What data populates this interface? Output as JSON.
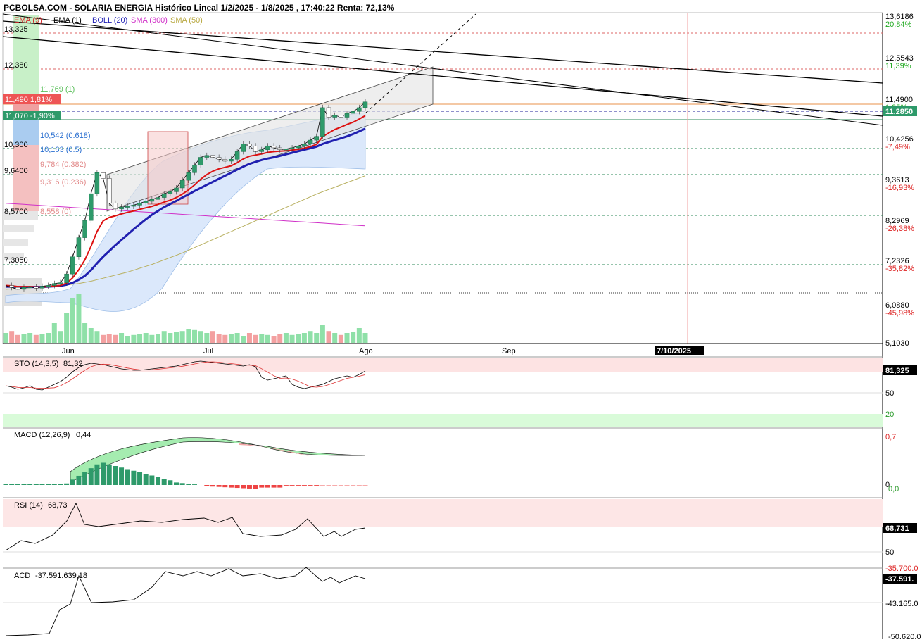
{
  "header": {
    "title": "PCBOLSA.COM - SOLARIA ENERGIA Histórico Lineal 1/2/2025 - 1/8/2025 , 17:40:22 Renta: 72,13%"
  },
  "legend": [
    {
      "label": "EMA (9)",
      "color": "#d62728"
    },
    {
      "label": "EMA (1)",
      "color": "#000000"
    },
    {
      "label": "BOLL (20)",
      "color": "#1f1fb4"
    },
    {
      "label": "SMA (300)",
      "color": "#d030c8"
    },
    {
      "label": "SMA (50)",
      "color": "#b8a840"
    }
  ],
  "colors": {
    "up": "#2e9a6a",
    "down": "#d44",
    "ema9": "#dd1111",
    "boll": "#2020b0",
    "sma300": "#d030c8",
    "sma50": "#b8b060",
    "band_fill": "#dbe8fb"
  },
  "left_labels": {
    "p13325": "13,325",
    "p12380": "12,380",
    "p10300": "10,300",
    "p9640": "9,6400",
    "p8570": "8,5700",
    "p7305": "7,3050",
    "fib_top": "11,769 (1)",
    "fib_618": "10,542 (0.618)",
    "fib_05": "10,163 (0.5)",
    "fib_382": "9,784 (0.382)",
    "fib_236": "9,316 (0.236)",
    "fib_0": "8,558 (0)",
    "badge_red": "11,490  1,81%",
    "badge_green": "11,070  -1,90%"
  },
  "right_axis": {
    "ticks": [
      {
        "price": "13,6186",
        "pct": "20,84%",
        "pct_color": "#22aa22"
      },
      {
        "price": "12,5543",
        "pct": "11,39%",
        "pct_color": "#22aa22"
      },
      {
        "price": "11,4900",
        "pct": "1,95%",
        "pct_color": "#22aa22"
      },
      {
        "price": "10,4256",
        "pct": "-7,49%",
        "pct_color": "#dd2222"
      },
      {
        "price": "9,3613",
        "pct": "-16,93%",
        "pct_color": "#dd2222"
      },
      {
        "price": "8,2969",
        "pct": "-26,38%",
        "pct_color": "#dd2222"
      },
      {
        "price": "7,2326",
        "pct": "-35,82%",
        "pct_color": "#dd2222"
      },
      {
        "price": "6,0880",
        "pct": "-45,98%",
        "pct_color": "#dd2222"
      },
      {
        "price": "5,1030",
        "pct": "",
        "pct_color": "#dd2222"
      }
    ],
    "last_price": "11,2850"
  },
  "x_axis": {
    "months": [
      "Jun",
      "Jul",
      "Ago",
      "Sep"
    ],
    "cursor_date": "7/10/2025"
  },
  "panels": {
    "sto": {
      "label": "STO (14,3,5)",
      "value": "81,32",
      "last": "81,325",
      "ticks": [
        "50",
        "20"
      ]
    },
    "macd": {
      "label": "MACD (12,26,9)",
      "value": "0,44",
      "ticks": [
        "0,7",
        "0",
        "0,0"
      ]
    },
    "rsi": {
      "label": "RSI (14)",
      "value": "68,73",
      "last": "68,731",
      "ticks": [
        "50"
      ]
    },
    "acd": {
      "label": "ACD",
      "value": "-37.591.639,18",
      "last": "-37.591.",
      "ticks": [
        "-35.700.0",
        "-43.165.0",
        "-50.620.0"
      ]
    }
  },
  "chart_data": {
    "type": "candlestick",
    "title": "PCBOLSA.COM - SOLARIA ENERGIA Histórico Lineal 1/2/2025 - 1/8/2025 , 17:40:22 Renta: 72,13%",
    "x_range": [
      "2025-05-05",
      "2025-10-17"
    ],
    "y_range": [
      5.103,
      13.6186
    ],
    "grid": false,
    "close": [
      6.65,
      6.6,
      6.55,
      6.6,
      6.62,
      6.58,
      6.63,
      6.65,
      6.7,
      6.72,
      6.95,
      7.4,
      7.9,
      8.35,
      9.05,
      9.6,
      9.45,
      8.8,
      8.65,
      8.7,
      8.72,
      8.75,
      8.8,
      8.85,
      8.9,
      8.95,
      9.05,
      9.1,
      9.2,
      9.4,
      9.6,
      9.8,
      10.0,
      10.05,
      10.0,
      9.95,
      9.9,
      9.95,
      10.15,
      10.35,
      10.3,
      10.15,
      10.2,
      10.3,
      10.25,
      10.2,
      10.22,
      10.25,
      10.3,
      10.35,
      10.45,
      10.55,
      11.3,
      11.05,
      11.1,
      11.05,
      11.15,
      11.2,
      11.3,
      11.45
    ],
    "volume": [
      1.0,
      1.2,
      0.8,
      0.9,
      1.0,
      0.8,
      0.9,
      1.0,
      2.0,
      1.2,
      3.0,
      4.5,
      5.0,
      2.0,
      1.5,
      1.2,
      0.8,
      0.9,
      0.8,
      1.0,
      0.7,
      0.8,
      0.9,
      1.0,
      0.8,
      0.9,
      1.2,
      1.0,
      1.1,
      1.2,
      1.4,
      1.3,
      1.2,
      1.0,
      1.2,
      0.9,
      0.8,
      0.9,
      1.0,
      0.7,
      1.0,
      0.8,
      0.9,
      0.8,
      0.7,
      0.9,
      1.0,
      0.8,
      0.9,
      1.0,
      1.2,
      1.0,
      1.8,
      1.2,
      1.0,
      0.8,
      1.0,
      1.1,
      1.5,
      1.0
    ],
    "ema9": [
      6.65,
      6.64,
      6.62,
      6.62,
      6.62,
      6.61,
      6.61,
      6.62,
      6.64,
      6.65,
      6.71,
      6.85,
      7.06,
      7.32,
      7.67,
      8.06,
      8.34,
      8.43,
      8.47,
      8.52,
      8.56,
      8.6,
      8.64,
      8.68,
      8.72,
      8.77,
      8.83,
      8.88,
      8.95,
      9.04,
      9.15,
      9.28,
      9.43,
      9.55,
      9.64,
      9.7,
      9.74,
      9.78,
      9.86,
      9.96,
      10.03,
      10.06,
      10.09,
      10.13,
      10.15,
      10.16,
      10.17,
      10.19,
      10.21,
      10.24,
      10.28,
      10.34,
      10.54,
      10.64,
      10.73,
      10.79,
      10.86,
      10.92,
      11.0,
      11.09
    ],
    "boll_mid": [
      6.62,
      6.62,
      6.61,
      6.61,
      6.61,
      6.61,
      6.61,
      6.62,
      6.63,
      6.64,
      6.67,
      6.72,
      6.8,
      6.9,
      7.05,
      7.23,
      7.4,
      7.55,
      7.7,
      7.84,
      7.98,
      8.12,
      8.25,
      8.38,
      8.5,
      8.6,
      8.7,
      8.78,
      8.86,
      8.95,
      9.03,
      9.12,
      9.2,
      9.28,
      9.36,
      9.44,
      9.52,
      9.6,
      9.68,
      9.76,
      9.83,
      9.88,
      9.93,
      9.97,
      10.0,
      10.04,
      10.08,
      10.12,
      10.16,
      10.2,
      10.24,
      10.28,
      10.35,
      10.4,
      10.45,
      10.5,
      10.55,
      10.61,
      10.68,
      10.75
    ],
    "sma300": [
      8.8,
      8.79,
      8.78,
      8.77,
      8.76,
      8.75,
      8.74,
      8.73,
      8.72,
      8.71,
      8.7,
      8.69,
      8.68,
      8.67,
      8.66,
      8.65,
      8.64,
      8.63,
      8.62,
      8.61,
      8.6,
      8.59,
      8.58,
      8.57,
      8.56,
      8.55,
      8.54,
      8.53,
      8.52,
      8.51,
      8.5,
      8.49,
      8.48,
      8.47,
      8.46,
      8.45,
      8.44,
      8.43,
      8.42,
      8.41,
      8.4,
      8.39,
      8.38,
      8.37,
      8.36,
      8.35,
      8.34,
      8.33,
      8.32,
      8.31,
      8.3,
      8.29,
      8.28,
      8.27,
      8.26,
      8.25,
      8.24,
      8.23,
      8.22,
      8.21
    ],
    "sma50": [
      6.55,
      6.56,
      6.57,
      6.58,
      6.59,
      6.6,
      6.61,
      6.62,
      6.63,
      6.64,
      6.66,
      6.68,
      6.7,
      6.73,
      6.76,
      6.8,
      6.84,
      6.88,
      6.92,
      6.96,
      7.0,
      7.05,
      7.1,
      7.15,
      7.2,
      7.26,
      7.32,
      7.38,
      7.44,
      7.5,
      7.57,
      7.64,
      7.71,
      7.78,
      7.85,
      7.92,
      7.99,
      8.06,
      8.13,
      8.2,
      8.27,
      8.34,
      8.41,
      8.48,
      8.55,
      8.62,
      8.69,
      8.76,
      8.83,
      8.9,
      8.97,
      9.04,
      9.1,
      9.16,
      9.22,
      9.28,
      9.34,
      9.4,
      9.46,
      9.52
    ],
    "sto_k": [
      60,
      58,
      55,
      57,
      60,
      55,
      54,
      58,
      62,
      66,
      72,
      80,
      86,
      90,
      92,
      91,
      90,
      88,
      86,
      84,
      83,
      82,
      82,
      83,
      84,
      85,
      86,
      87,
      88,
      90,
      92,
      94,
      95,
      94,
      93,
      92,
      91,
      90,
      89,
      88,
      90,
      87,
      72,
      68,
      70,
      72,
      74,
      62,
      58,
      56,
      58,
      60,
      62,
      66,
      70,
      72,
      74,
      72,
      76,
      81
    ]
  }
}
